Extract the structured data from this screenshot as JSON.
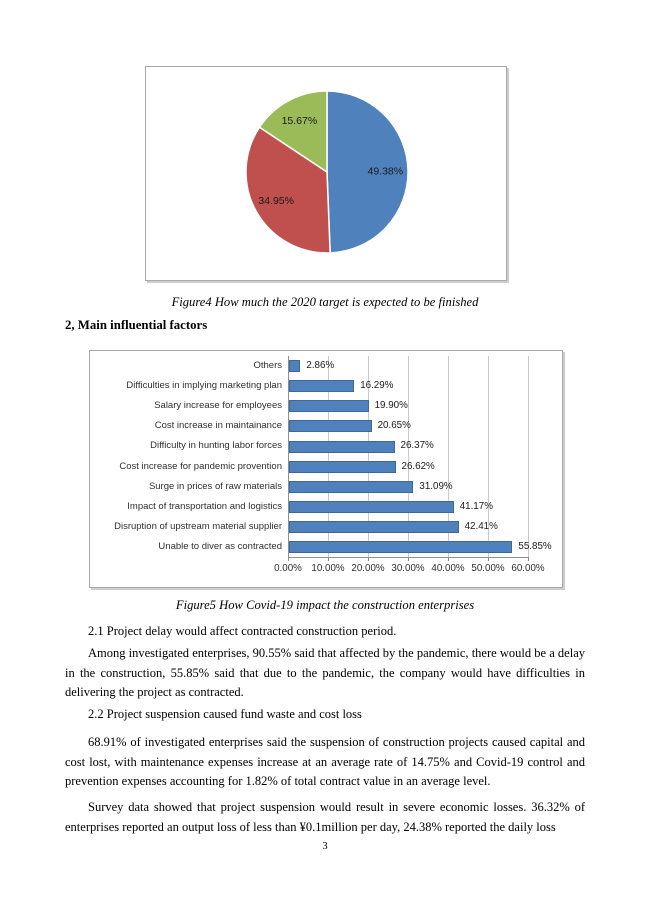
{
  "document": {
    "page_number": "3",
    "figure4_caption": "Figure4 How much the 2020 target is expected to be finished",
    "section_heading": "2, Main influential factors",
    "figure5_caption": "Figure5 How Covid-19 impact the construction enterprises",
    "paragraphs": {
      "p21_heading": "2.1 Project delay would affect contracted construction period.",
      "p21_body": "Among investigated enterprises, 90.55% said that affected by the pandemic, there would be a delay in the construction, 55.85% said that due to the pandemic, the company would have difficulties in delivering the project as contracted.",
      "p22_heading": "2.2 Project suspension caused fund waste and cost loss",
      "p22_body": "68.91% of investigated enterprises said the suspension of construction projects caused capital and cost lost, with maintenance expenses increase at an average rate of 14.75% and Covid-19 control and prevention expenses accounting for 1.82% of total contract value in an average level.",
      "p_survey": "Survey data showed that project suspension would result in severe economic losses. 36.32% of enterprises reported an output loss of less than ¥0.1million per day, 24.38% reported the daily loss"
    }
  },
  "chart_data": [
    {
      "type": "pie",
      "title": "How much the 2020 target is expected to be finished",
      "values": [
        49.38,
        34.95,
        15.67
      ],
      "labels": [
        "49.38%",
        "34.95%",
        "15.67%"
      ],
      "colors": [
        "#4f81bd",
        "#c0504d",
        "#9bbb59"
      ],
      "start_angle_deg": 0,
      "direction": "clockwise",
      "legend_position": "none"
    },
    {
      "type": "bar",
      "orientation": "horizontal",
      "title": "How Covid-19 impact the construction enterprises",
      "categories": [
        "Others",
        "Difficulties in implying marketing plan",
        "Salary increase for employees",
        "Cost increase in maintainance",
        "Difficulty in hunting labor forces",
        "Cost increase for pandemic provention",
        "Surge in prices of raw materials",
        "Impact of transportation and logistics",
        "Disruption of upstream material supplier",
        "Unable to diver as contracted"
      ],
      "values": [
        2.86,
        16.29,
        19.9,
        20.65,
        26.37,
        26.62,
        31.09,
        41.17,
        42.41,
        55.85
      ],
      "value_labels": [
        "2.86%",
        "16.29%",
        "19.90%",
        "20.65%",
        "26.37%",
        "26.62%",
        "31.09%",
        "41.17%",
        "42.41%",
        "55.85%"
      ],
      "x_ticks": [
        "0.00%",
        "10.00%",
        "20.00%",
        "30.00%",
        "40.00%",
        "50.00%",
        "60.00%"
      ],
      "xlim": [
        0,
        60
      ],
      "bar_color": "#4f81bd",
      "grid": true,
      "legend_position": "none"
    }
  ]
}
